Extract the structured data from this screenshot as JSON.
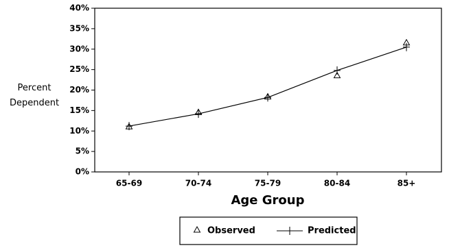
{
  "chart_data": {
    "type": "line",
    "xlabel": "Age Group",
    "ylabel": "Percent Dependent",
    "categories": [
      "65-69",
      "70-74",
      "75-79",
      "80-84",
      "85+"
    ],
    "series": [
      {
        "name": "Observed",
        "color": "#000000",
        "marker": "triangle",
        "line": false,
        "values": [
          11,
          14.5,
          18.3,
          23.5,
          31.5
        ]
      },
      {
        "name": "Predicted",
        "color": "#000000",
        "marker": "plus",
        "line": true,
        "values": [
          11.2,
          14.2,
          18.2,
          24.8,
          30.5
        ]
      }
    ],
    "ylim": [
      0,
      40
    ],
    "yticks": [
      {
        "value": 0,
        "label": "0%"
      },
      {
        "value": 5,
        "label": "5%"
      },
      {
        "value": 10,
        "label": "10%"
      },
      {
        "value": 15,
        "label": "15%"
      },
      {
        "value": 20,
        "label": "20%"
      },
      {
        "value": 25,
        "label": "25%"
      },
      {
        "value": 30,
        "label": "30%"
      },
      {
        "value": 35,
        "label": "35%"
      },
      {
        "value": 40,
        "label": "40%"
      }
    ],
    "grid": false,
    "legend": "bottom"
  }
}
